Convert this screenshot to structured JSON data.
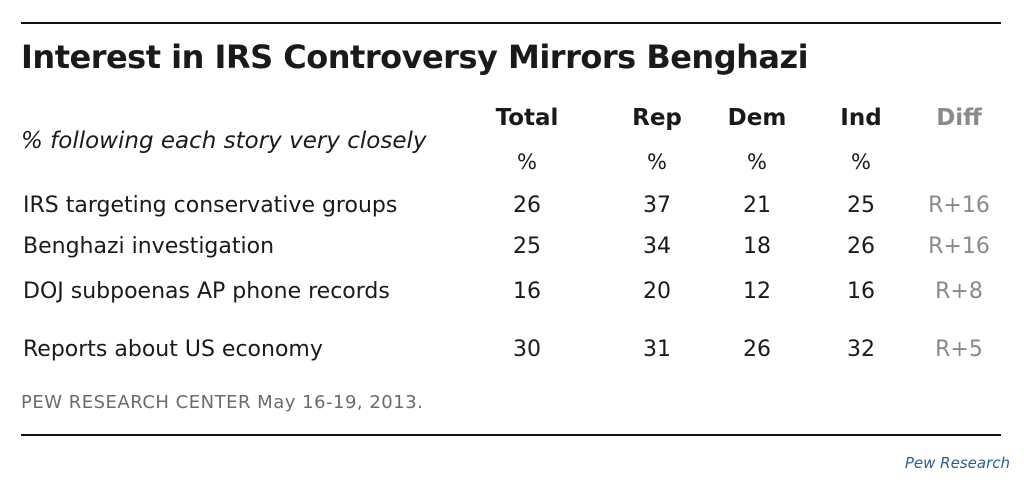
{
  "chart_data": {
    "type": "table",
    "title": "Interest in IRS Controversy Mirrors Benghazi",
    "subtitle": "% following each story very closely",
    "columns": [
      "Total",
      "Rep",
      "Dem",
      "Ind",
      "Diff"
    ],
    "units": [
      "%",
      "%",
      "%",
      "%",
      ""
    ],
    "rows": [
      {
        "label": "IRS targeting conservative groups",
        "values": [
          "26",
          "37",
          "21",
          "25",
          "R+16"
        ]
      },
      {
        "label": "Benghazi investigation",
        "values": [
          "25",
          "34",
          "18",
          "26",
          "R+16"
        ]
      },
      {
        "label": "DOJ subpoenas AP phone records",
        "values": [
          "16",
          "20",
          "12",
          "16",
          "R+8"
        ]
      },
      {
        "label": "Reports about US economy",
        "values": [
          "30",
          "31",
          "26",
          "32",
          "R+5"
        ]
      }
    ],
    "source": "PEW RESEARCH  CENTER May 16-19, 2013.",
    "credit": "Pew Research"
  },
  "colors": {
    "text": "#1a1a1a",
    "muted": "#8a8a8a",
    "source": "#6b6b6b",
    "credit": "#2a5d9a",
    "rule": "#111111"
  }
}
